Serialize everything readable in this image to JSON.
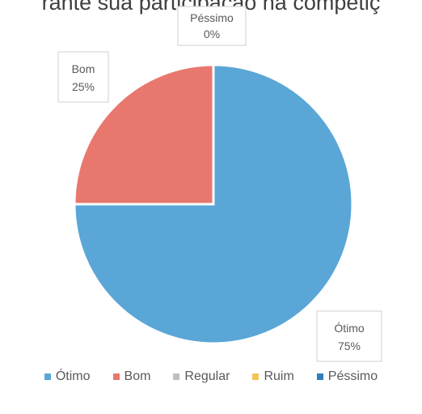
{
  "chart_data": {
    "type": "pie",
    "title": "rante sua participação na competiç",
    "categories": [
      "Ótimo",
      "Bom",
      "Regular",
      "Ruim",
      "Péssimo"
    ],
    "values": [
      75,
      25,
      0,
      0,
      0
    ],
    "data_labels": [
      {
        "name": "Ótimo",
        "value": "75%"
      },
      {
        "name": "Bom",
        "value": "25%"
      },
      {
        "name": "Péssimo",
        "value": "0%"
      }
    ],
    "colors": [
      "#5aa6d6",
      "#e8786e",
      "#bfbfbf",
      "#f2c35a",
      "#2f7fb8"
    ],
    "legend_position": "bottom"
  }
}
